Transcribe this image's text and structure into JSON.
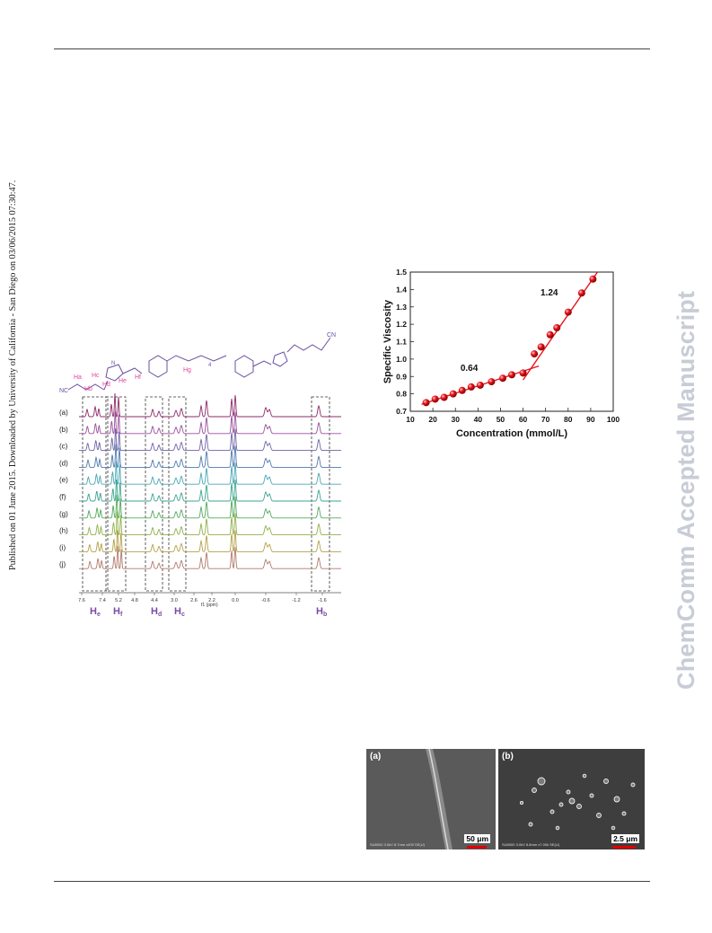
{
  "page": {
    "side_note": "Published on 01 June 2015. Downloaded by University of California - San Diego on 03/06/2015 07:30:47.",
    "watermark": "ChemComm Accepted Manuscript"
  },
  "nmr_figure": {
    "structure_labels": [
      "Ha",
      "Hb",
      "Hc",
      "Hd",
      "He",
      "Hf",
      "Hg",
      "NC",
      "CN",
      "N",
      "4"
    ],
    "spectra_labels": [
      "(a)",
      "(b)",
      "(c)",
      "(d)",
      "(e)",
      "(f)",
      "(g)",
      "(h)",
      "(i)",
      "(j)"
    ],
    "spectra_colors": [
      "#8e2a6a",
      "#9a4f9c",
      "#6e64a8",
      "#4d7ab0",
      "#49a7b5",
      "#3aa58f",
      "#53a95c",
      "#92b04a",
      "#b5a148",
      "#b07a6c"
    ],
    "axis_ticks": [
      "7.6",
      "7.4",
      "5.2",
      "4.8",
      "4.4",
      "3.0",
      "2.6",
      "2.2",
      "0.0",
      "-0.6",
      "-1.2",
      "-1.6"
    ],
    "axis_unit": "f1 (ppm)",
    "proton_labels": [
      {
        "main": "H",
        "sub": "e"
      },
      {
        "main": "H",
        "sub": "f"
      },
      {
        "main": "H",
        "sub": "d"
      },
      {
        "main": "H",
        "sub": "c"
      },
      {
        "main": "H",
        "sub": "b"
      }
    ],
    "label_color": "#7a4aa8"
  },
  "chart_data": {
    "type": "scatter",
    "xlabel": "Concentration (mmol/L)",
    "ylabel": "Specific Viscosity",
    "xlim": [
      10,
      100
    ],
    "ylim": [
      0.7,
      1.5
    ],
    "x_ticks": [
      10,
      20,
      30,
      40,
      50,
      60,
      70,
      80,
      90,
      100
    ],
    "y_ticks": [
      0.7,
      0.8,
      0.9,
      1.0,
      1.1,
      1.2,
      1.3,
      1.4,
      1.5
    ],
    "x": [
      17,
      21,
      25,
      29,
      33,
      37,
      41,
      46,
      51,
      55,
      60,
      65,
      68,
      72,
      75,
      80,
      86,
      91
    ],
    "y": [
      0.75,
      0.77,
      0.78,
      0.8,
      0.82,
      0.84,
      0.85,
      0.87,
      0.89,
      0.91,
      0.92,
      1.03,
      1.07,
      1.14,
      1.18,
      1.27,
      1.38,
      1.46
    ],
    "fits": [
      {
        "label": "0.64",
        "x": [
          15,
          67
        ],
        "y": [
          0.74,
          0.96
        ]
      },
      {
        "label": "1.24",
        "x": [
          60,
          93
        ],
        "y": [
          0.88,
          1.5
        ]
      }
    ],
    "marker_color": "#e8141c",
    "line_color": "#e8141c",
    "grid": false
  },
  "sem_figure": {
    "panels": [
      {
        "label": "(a)",
        "scale": "50 μm",
        "info": "SU8000 3.0kV 8.7mm x400 SE(U)"
      },
      {
        "label": "(b)",
        "scale": "2.5 μm",
        "info": "SU8000 3.0kV 8.8mm x7.00k SE(U)"
      }
    ]
  }
}
